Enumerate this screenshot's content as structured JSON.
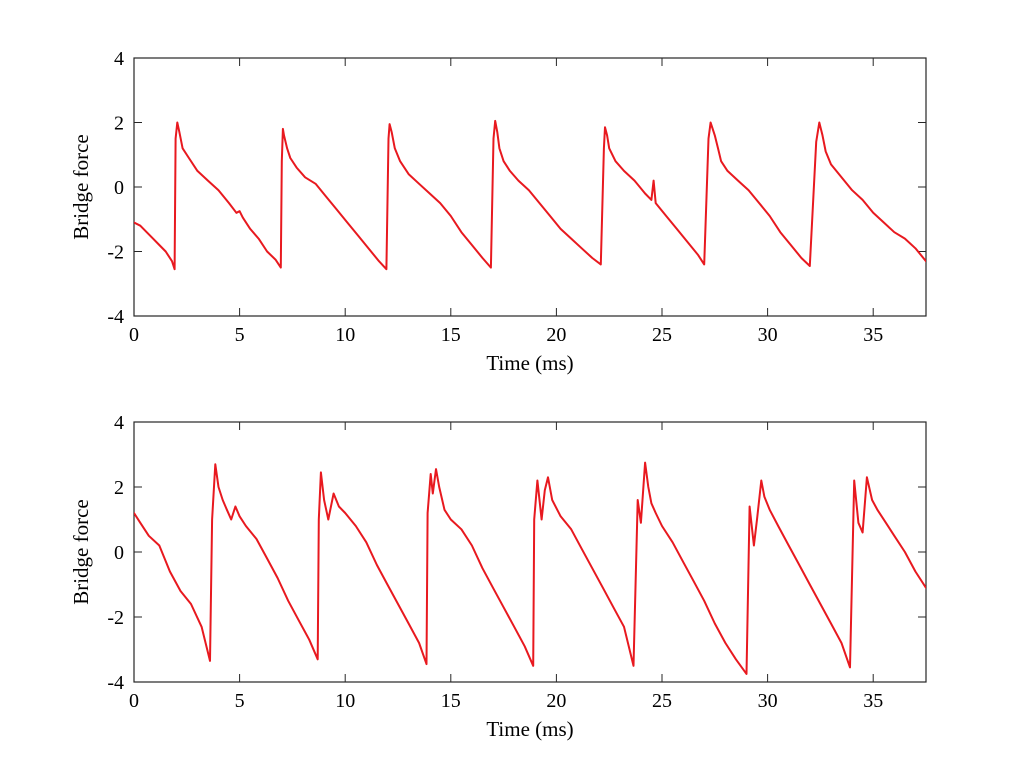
{
  "chart_data": [
    {
      "type": "line",
      "title": "",
      "xlabel": "Time (ms)",
      "ylabel": "Bridge force",
      "xlim": [
        0,
        37.5
      ],
      "ylim": [
        -4,
        4
      ],
      "xticks": [
        0,
        5,
        10,
        15,
        20,
        25,
        30,
        35
      ],
      "yticks": [
        -4,
        -2,
        0,
        2,
        4
      ],
      "grid": false,
      "color": "#e8191f",
      "series": [
        {
          "x": [
            0,
            0.3,
            0.6,
            0.9,
            1.2,
            1.5,
            1.8,
            1.92,
            1.97,
            2.05,
            2.15,
            2.3,
            2.6,
            3.0,
            3.5,
            4.0,
            4.5,
            4.85,
            5.0,
            5.15,
            5.5,
            5.9,
            6.3,
            6.7,
            6.95,
            7.0,
            7.05,
            7.1,
            7.25,
            7.4,
            7.7,
            8.1,
            8.6,
            9.1,
            9.6,
            10.1,
            10.6,
            11.1,
            11.6,
            11.95,
            12.05,
            12.1,
            12.2,
            12.35,
            12.6,
            13.0,
            13.5,
            14.0,
            14.5,
            15.0,
            15.5,
            16.0,
            16.5,
            16.9,
            17.02,
            17.1,
            17.2,
            17.3,
            17.5,
            17.8,
            18.2,
            18.7,
            19.2,
            19.7,
            20.2,
            20.7,
            21.2,
            21.7,
            22.1,
            22.25,
            22.3,
            22.4,
            22.5,
            22.8,
            23.2,
            23.7,
            24.2,
            24.5,
            24.6,
            24.7,
            25.2,
            25.7,
            26.2,
            26.7,
            27.0,
            27.2,
            27.3,
            27.5,
            27.65,
            27.8,
            28.1,
            28.6,
            29.1,
            29.6,
            30.1,
            30.6,
            31.1,
            31.6,
            32.0,
            32.3,
            32.45,
            32.6,
            32.75,
            33.0,
            33.5,
            34.0,
            34.5,
            35.0,
            35.5,
            36.0,
            36.5,
            37.0,
            37.5
          ],
          "y": [
            -1.1,
            -1.2,
            -1.4,
            -1.6,
            -1.8,
            -2.0,
            -2.3,
            -2.55,
            1.5,
            2.0,
            1.7,
            1.2,
            0.9,
            0.5,
            0.2,
            -0.1,
            -0.5,
            -0.8,
            -0.75,
            -0.95,
            -1.3,
            -1.6,
            -2.0,
            -2.25,
            -2.5,
            0.8,
            1.8,
            1.6,
            1.2,
            0.9,
            0.6,
            0.3,
            0.1,
            -0.3,
            -0.7,
            -1.1,
            -1.5,
            -1.9,
            -2.3,
            -2.55,
            1.5,
            1.95,
            1.7,
            1.2,
            0.8,
            0.4,
            0.1,
            -0.2,
            -0.5,
            -0.9,
            -1.4,
            -1.8,
            -2.2,
            -2.5,
            1.5,
            2.05,
            1.7,
            1.2,
            0.8,
            0.5,
            0.2,
            -0.1,
            -0.5,
            -0.9,
            -1.3,
            -1.6,
            -1.9,
            -2.2,
            -2.4,
            1.2,
            1.85,
            1.6,
            1.2,
            0.8,
            0.5,
            0.2,
            -0.2,
            -0.4,
            0.2,
            -0.5,
            -0.9,
            -1.3,
            -1.7,
            -2.1,
            -2.4,
            1.5,
            2.0,
            1.6,
            1.2,
            0.8,
            0.5,
            0.2,
            -0.1,
            -0.5,
            -0.9,
            -1.4,
            -1.8,
            -2.2,
            -2.45,
            1.4,
            2.0,
            1.6,
            1.1,
            0.7,
            0.3,
            -0.1,
            -0.4,
            -0.8,
            -1.1,
            -1.4,
            -1.6,
            -1.9,
            -2.3
          ]
        }
      ]
    },
    {
      "type": "line",
      "title": "",
      "xlabel": "Time (ms)",
      "ylabel": "Bridge force",
      "xlim": [
        0,
        37.5
      ],
      "ylim": [
        -4,
        4
      ],
      "xticks": [
        0,
        5,
        10,
        15,
        20,
        25,
        30,
        35
      ],
      "yticks": [
        -4,
        -2,
        0,
        2,
        4
      ],
      "grid": false,
      "color": "#e8191f",
      "series": [
        {
          "x": [
            0,
            0.3,
            0.7,
            1.2,
            1.7,
            2.2,
            2.7,
            3.2,
            3.6,
            3.7,
            3.85,
            4.0,
            4.2,
            4.4,
            4.6,
            4.8,
            5.0,
            5.3,
            5.8,
            6.3,
            6.8,
            7.3,
            7.8,
            8.3,
            8.7,
            8.75,
            8.85,
            9.0,
            9.2,
            9.45,
            9.7,
            10.0,
            10.5,
            11.0,
            11.5,
            12.0,
            12.5,
            13.0,
            13.5,
            13.85,
            13.9,
            14.05,
            14.15,
            14.3,
            14.45,
            14.7,
            15.0,
            15.5,
            16.0,
            16.5,
            17.0,
            17.5,
            18.0,
            18.5,
            18.9,
            18.95,
            19.1,
            19.3,
            19.45,
            19.6,
            19.8,
            20.2,
            20.7,
            21.2,
            21.7,
            22.2,
            22.7,
            23.2,
            23.65,
            23.85,
            24.0,
            24.2,
            24.35,
            24.5,
            24.7,
            25.0,
            25.5,
            26.0,
            26.5,
            27.0,
            27.5,
            28.0,
            28.5,
            29.0,
            29.15,
            29.35,
            29.5,
            29.7,
            29.85,
            30.1,
            30.5,
            31.0,
            31.5,
            32.0,
            32.5,
            33.0,
            33.5,
            33.9,
            34.1,
            34.3,
            34.5,
            34.7,
            34.95,
            35.2,
            35.6,
            36.0,
            36.5,
            37.0,
            37.5
          ],
          "y": [
            1.2,
            0.9,
            0.5,
            0.2,
            -0.6,
            -1.2,
            -1.6,
            -2.3,
            -3.35,
            1.0,
            2.7,
            2.0,
            1.6,
            1.3,
            1.0,
            1.4,
            1.1,
            0.8,
            0.4,
            -0.2,
            -0.8,
            -1.5,
            -2.1,
            -2.7,
            -3.3,
            1.0,
            2.45,
            1.6,
            1.0,
            1.8,
            1.4,
            1.2,
            0.8,
            0.3,
            -0.4,
            -1.0,
            -1.6,
            -2.2,
            -2.8,
            -3.45,
            1.2,
            2.4,
            1.8,
            2.55,
            2.0,
            1.3,
            1.0,
            0.7,
            0.2,
            -0.5,
            -1.1,
            -1.7,
            -2.3,
            -2.9,
            -3.5,
            1.0,
            2.2,
            1.0,
            1.9,
            2.3,
            1.6,
            1.1,
            0.7,
            0.1,
            -0.5,
            -1.1,
            -1.7,
            -2.3,
            -3.5,
            1.6,
            0.9,
            2.75,
            2.0,
            1.5,
            1.2,
            0.8,
            0.3,
            -0.3,
            -0.9,
            -1.5,
            -2.2,
            -2.8,
            -3.3,
            -3.75,
            1.4,
            0.2,
            1.0,
            2.2,
            1.7,
            1.3,
            0.8,
            0.2,
            -0.4,
            -1.0,
            -1.6,
            -2.2,
            -2.8,
            -3.55,
            2.2,
            0.9,
            0.6,
            2.3,
            1.6,
            1.3,
            0.9,
            0.5,
            0.0,
            -0.6,
            -1.1
          ]
        }
      ]
    }
  ]
}
